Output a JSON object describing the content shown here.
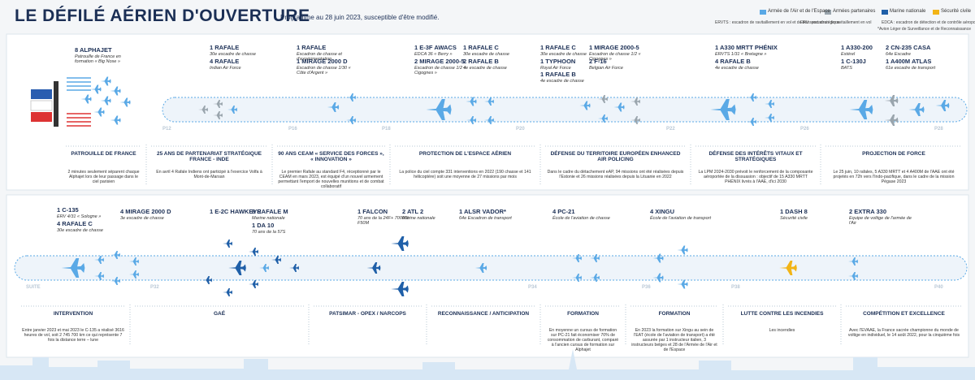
{
  "header": {
    "title": "LE DÉFILÉ AÉRIEN D'OUVERTURE",
    "subtitle": "Programme au 28 juin 2023, susceptible d'être modifié."
  },
  "legend": [
    {
      "label": "Armée de l'Air et de l'Espace",
      "color": "#5aa9e6"
    },
    {
      "label": "Armées partenaires",
      "color": "#9aa5ad"
    },
    {
      "label": "Marine nationale",
      "color": "#1f5fa8"
    },
    {
      "label": "Sécurité civile",
      "color": "#f2b416"
    }
  ],
  "notes": [
    "ERVTS : escadron de ravitaillement en vol et de transport stratégique",
    "ERV : escadron de ravitaillement en vol",
    "EDCA : escadron de détection et de contrôle aéroportés",
    "*Avion Léger de Surveillance et de Reconnaissance"
  ],
  "panels": [
    {
      "markers": [
        "P12",
        "P16",
        "P18",
        "P20",
        "P22",
        "P26",
        "P28"
      ],
      "aircraft": [
        {
          "label": "8 ALPHAJET",
          "unit": "Patrouille de France en formation « Big Nose »"
        },
        {
          "label": "1 RAFALE",
          "unit": "30e escadre de chasse"
        },
        {
          "label": "4 RAFALE",
          "unit": "Indian Air Force"
        },
        {
          "label": "1 RAFALE",
          "unit": "Escadron de chasse et d'expérimentation"
        },
        {
          "label": "1 MIRAGE 2000 D",
          "unit": "Escadron de chasse 1/30 « Côte d'Argent »"
        },
        {
          "label": "1 E-3F AWACS",
          "unit": "EDCA 36 « Berry »"
        },
        {
          "label": "2 MIRAGE 2000-5",
          "unit": "Escadron de chasse 1/2 « Cigognes »"
        },
        {
          "label": "1 RAFALE C",
          "unit": "30e escadre de chasse"
        },
        {
          "label": "2 RAFALE B",
          "unit": "4e escadre de chasse"
        },
        {
          "label": "1 RAFALE C",
          "unit": "30e escadre de chasse"
        },
        {
          "label": "1 TYPHOON",
          "unit": "Royal Air Force"
        },
        {
          "label": "1 RAFALE B",
          "unit": "4e escadre de chasse"
        },
        {
          "label": "1 MIRAGE 2000-5",
          "unit": "Escadron de chasse 1/2 « Cigognes »"
        },
        {
          "label": "2 F-16",
          "unit": "Belgian Air Force"
        },
        {
          "label": "1 A330 MRTT PHÉNIX",
          "unit": "ERVTS 1/31 « Bretagne »"
        },
        {
          "label": "4 RAFALE B",
          "unit": "4e escadre de chasse"
        },
        {
          "label": "1 A330-200",
          "unit": "Estérel"
        },
        {
          "label": "1 C-130J",
          "unit": "BATS"
        },
        {
          "label": "2 CN-235 CASA",
          "unit": "64e Escadre"
        },
        {
          "label": "1 A400M ATLAS",
          "unit": "61e escadre de transport"
        }
      ],
      "sections": [
        {
          "title": "PATROUILLE DE FRANCE",
          "text": "2 minutes seulement séparent chaque Alphajet lors de leur passage dans le ciel parisien"
        },
        {
          "title": "25 ANS DE PARTENARIAT STRATÉGIQUE FRANCE - INDE",
          "text": "En avril 4 Rafale Indiens ont participé à l'exercice Volfa à Mont-de-Marsan"
        },
        {
          "title": "90 ANS CEAM « SERVICE DES FORCES », « INNOVATION »",
          "text": "Le premier Rafale au standard F4, réceptionné par le CEAM en mars 2023, est équipé d'un nouvel armement permettant l'emport de nouvelles munitions et de combat collaboratif"
        },
        {
          "title": "PROTECTION DE L'ESPACE AÉRIEN",
          "text": "La police du ciel compte 331 interventions en 2022 (190 chasse et 141 hélicoptère) soit une moyenne de 27 missions par mois"
        },
        {
          "title": "DÉFENSE DU TERRITOIRE EUROPÉEN ENHANCED AIR POLICING",
          "text": "Dans le cadre du détachement eAP, 94 missions ont été réalisées depuis l'Estonie et 26 missions réalisées depuis la Lituanie en 2022"
        },
        {
          "title": "DÉFENSE DES INTÉRÊTS VITAUX ET STRATÉGIQUES",
          "text": "La LPM 2024-2030 prévoit le renforcement de la composante aéroportée de la dissuasion : objectif de 15 A330 MRTT PHÉNIX livrés à l'AAE, d'ici 2030"
        },
        {
          "title": "PROJECTION DE FORCE",
          "text": "Le 25 juin, 10 rafales, 5 A330 MRTT et 4 A400M de l'AAE ont été projetés en 72h vers l'Indo-pacifique, dans le cadre de la mission Pégase 2023"
        }
      ]
    },
    {
      "markers": [
        "SUITE",
        "P32",
        "P34",
        "P36",
        "P38",
        "P40"
      ],
      "aircraft": [
        {
          "label": "1 C-135",
          "unit": "ERV 4/31 « Sologne »"
        },
        {
          "label": "4 RAFALE C",
          "unit": "30e escadre de chasse"
        },
        {
          "label": "4 MIRAGE 2000 D",
          "unit": "3e escadre de chasse"
        },
        {
          "label": "1 E-2C HAWKEYE"
        },
        {
          "label": "8 RAFALE M",
          "unit": "Marine nationale"
        },
        {
          "label": "1 DA 10",
          "unit": "70 ans de la 57S"
        },
        {
          "label": "1 FALCON",
          "unit": "70 ans de la 24F+ 70000h F50M"
        },
        {
          "label": "2 ATL 2",
          "unit": "Marine nationale"
        },
        {
          "label": "1 ALSR VADOR*",
          "unit": "64e Escadron de transport"
        },
        {
          "label": "4 PC-21",
          "unit": "École de l'aviation de chasse"
        },
        {
          "label": "4 XINGU",
          "unit": "École de l'aviation de transport"
        },
        {
          "label": "1 DASH 8",
          "unit": "Sécurité civile"
        },
        {
          "label": "2 EXTRA 330",
          "unit": "Equipe de voltige de l'armée de l'Air"
        }
      ],
      "sections": [
        {
          "title": "INTERVENTION",
          "text": "Entre janvier 2023 et mai 2023 le C-135 a réalisé 3616 heures de vol, soit 2 745 700 km ce qui représente 7 fois la distance terre – lune"
        },
        {
          "title": "GAÉ"
        },
        {
          "title": "PATSIMAR - OPEX / NARCOPS"
        },
        {
          "title": "RECONNAISSANCE / ANTICIPATION"
        },
        {
          "title": "FORMATION",
          "text": "En moyenne un cursus de formation sur PC-21 fait économiser 70% de consommation de carburant, comparé à l'ancien cursus de formation sur Alphajet"
        },
        {
          "title": "FORMATION",
          "text": "En 2023 la formation sur Xingu au sein de l'EAT (école de l'aviation de transport) a été assurée par 1 instructeur italien, 3 instructeurs belges et 28 de l'Armée de l'Air et de l'Espace"
        },
        {
          "title": "LUTTE CONTRE LES INCENDIES",
          "text": "Les incendies"
        },
        {
          "title": "COMPÉTITION ET EXCELLENCE",
          "text": "Avec l'EVAAE, la France sacrée championne du monde de voltige en individuel, le 14 août 2022, pour la cinquième fois"
        }
      ]
    }
  ]
}
